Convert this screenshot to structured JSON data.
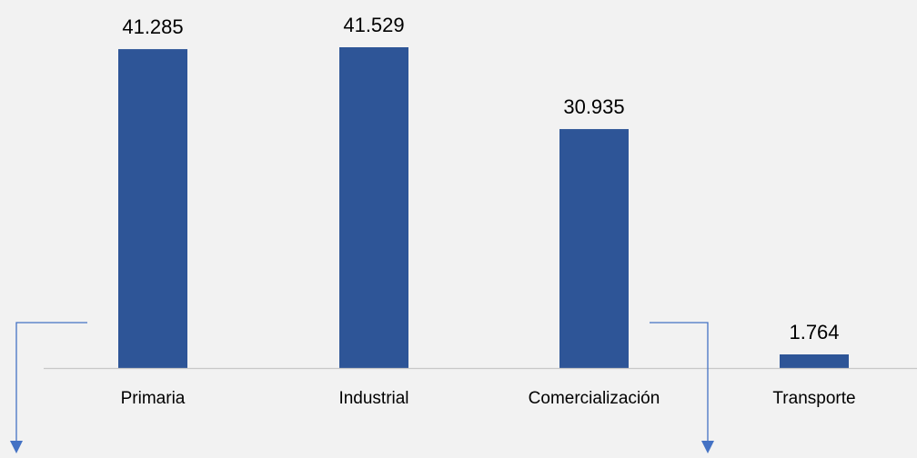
{
  "chart_data": {
    "type": "bar",
    "title": "",
    "xlabel": "",
    "ylabel": "",
    "categories": [
      "Primaria",
      "Industrial",
      "Comercialización",
      "Transporte"
    ],
    "values": [
      41.285,
      41.529,
      30.935,
      1.764
    ],
    "value_labels": [
      "41.285",
      "41.529",
      "30.935",
      "1.764"
    ],
    "ylim": [
      0,
      45
    ],
    "grid": false,
    "legend": "none",
    "bar_color": "#2e5597",
    "axis_color": "#c8c8c8",
    "arrow_color": "#4472c4"
  }
}
